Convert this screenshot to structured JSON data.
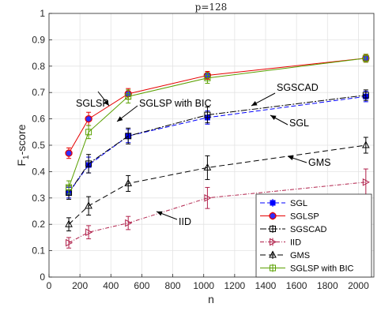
{
  "chart_data": {
    "type": "line",
    "title": "p=128",
    "xlabel": "n",
    "ylabel_main": "F",
    "ylabel_sub": "1",
    "ylabel_rest": "-score",
    "xlim": [
      0,
      2100
    ],
    "ylim": [
      0,
      1
    ],
    "grid": true,
    "legend_placement": "bottom-right",
    "x": [
      128,
      256,
      512,
      1024,
      2048
    ],
    "x_ticks": [
      "0",
      "200",
      "400",
      "600",
      "800",
      "1000",
      "1200",
      "1400",
      "1600",
      "1800",
      "2000"
    ],
    "y_ticks": [
      "0",
      "0.1",
      "0.2",
      "0.3",
      "0.4",
      "0.5",
      "0.6",
      "0.7",
      "0.8",
      "0.9",
      "1"
    ],
    "series": [
      {
        "name": "SGL",
        "values": [
          0.32,
          0.425,
          0.535,
          0.605,
          0.685
        ],
        "errors": [
          0.02,
          0.03,
          0.025,
          0.025,
          0.02
        ],
        "color": "#0000ff",
        "dash": "6,3",
        "marker": "filled-square"
      },
      {
        "name": "SGLSP",
        "values": [
          0.47,
          0.6,
          0.695,
          0.765,
          0.83
        ],
        "errors": [
          0.02,
          0.025,
          0.02,
          0.015,
          0.015
        ],
        "color": "#e60000",
        "dash": "",
        "marker": "filled-circle"
      },
      {
        "name": "SGSCAD",
        "values": [
          0.32,
          0.43,
          0.535,
          0.615,
          0.69
        ],
        "errors": [
          0.025,
          0.035,
          0.03,
          0.03,
          0.02
        ],
        "color": "#000000",
        "dash": "8,2,2,2",
        "marker": "open-square"
      },
      {
        "name": "IID",
        "values": [
          0.13,
          0.17,
          0.205,
          0.3,
          0.36
        ],
        "errors": [
          0.02,
          0.025,
          0.025,
          0.04,
          0.05
        ],
        "color": "#b0204a",
        "dash": "5,2,1,2",
        "marker": "open-triangle-right"
      },
      {
        "name": "GMS",
        "values": [
          0.2,
          0.27,
          0.355,
          0.415,
          0.5
        ],
        "errors": [
          0.025,
          0.035,
          0.03,
          0.045,
          0.03
        ],
        "color": "#000000",
        "dash": "7,4",
        "marker": "open-triangle-up"
      },
      {
        "name": "SGLSP with BIC",
        "values": [
          0.34,
          0.55,
          0.685,
          0.755,
          0.83
        ],
        "errors": [
          0.025,
          0.025,
          0.025,
          0.02,
          0.015
        ],
        "color": "#5aa000",
        "dash": "",
        "marker": "open-square"
      }
    ],
    "annotations": [
      {
        "text": "SGLSP"
      },
      {
        "text": "SGLSP with BIC"
      },
      {
        "text": "SGSCAD"
      },
      {
        "text": "SGL"
      },
      {
        "text": "GMS"
      },
      {
        "text": "IID"
      }
    ]
  }
}
